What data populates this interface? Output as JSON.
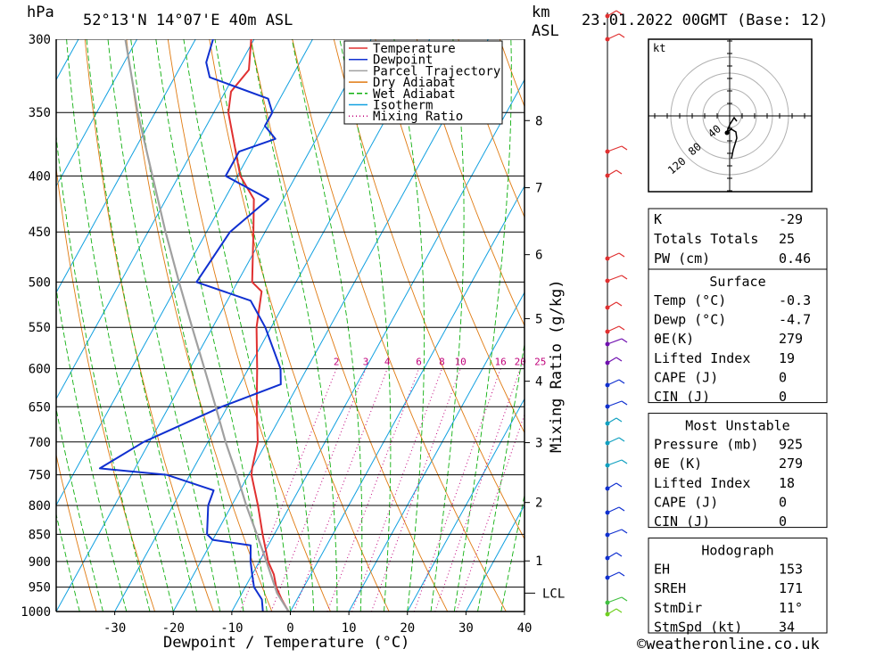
{
  "header": {
    "location": "52°13'N  14°07'E  40m  ASL",
    "datetime": "23.01.2022  00GMT  (Base: 12)",
    "hpa_unit": "hPa",
    "km_unit": "km",
    "asl_unit": "ASL"
  },
  "colors": {
    "temperature": "#e03030",
    "dewpoint": "#1030d0",
    "parcel": "#a0a0a0",
    "dry_adiabat": "#e07a10",
    "wet_adiabat": "#10b010",
    "isotherm": "#10a0e0",
    "mixing_ratio": "#c0007a"
  },
  "chart_data": {
    "type": "line",
    "xlabel": "Dewpoint / Temperature (°C)",
    "ylabel": "Mixing Ratio (g/kg)",
    "x_ticks": [
      -30,
      -20,
      -10,
      0,
      10,
      20,
      30,
      40
    ],
    "xlim": [
      -40,
      40
    ],
    "pressure_levels": [
      300,
      350,
      400,
      450,
      500,
      550,
      600,
      650,
      700,
      750,
      800,
      850,
      900,
      950,
      1000
    ],
    "plim": [
      300,
      1000
    ],
    "height_km_ticks": [
      {
        "label": "8",
        "p": 356
      },
      {
        "label": "7",
        "p": 410
      },
      {
        "label": "6",
        "p": 472
      },
      {
        "label": "5",
        "p": 540
      },
      {
        "label": "4",
        "p": 616
      },
      {
        "label": "3",
        "p": 701
      },
      {
        "label": "2",
        "p": 795
      },
      {
        "label": "1",
        "p": 899
      }
    ],
    "lcl": {
      "label": "LCL",
      "p": 962
    },
    "mixing_ratio_labels": [
      "2",
      "3",
      "4",
      "6",
      "8",
      "10",
      "16",
      "20",
      "25"
    ],
    "legend": [
      {
        "label": "Temperature",
        "key": "temperature"
      },
      {
        "label": "Dewpoint",
        "key": "dewpoint"
      },
      {
        "label": "Parcel Trajectory",
        "key": "parcel"
      },
      {
        "label": "Dry Adiabat",
        "key": "dry_adiabat"
      },
      {
        "label": "Wet Adiabat",
        "key": "wet_adiabat"
      },
      {
        "label": "Isotherm",
        "key": "isotherm"
      },
      {
        "label": "Mixing Ratio",
        "key": "mixing_ratio"
      }
    ],
    "legend_position": "top-right",
    "series": [
      {
        "name": "Temperature",
        "points": [
          {
            "p": 1000,
            "t": -0.3
          },
          {
            "p": 975,
            "t": -2.6
          },
          {
            "p": 950,
            "t": -4.7
          },
          {
            "p": 925,
            "t": -6.3
          },
          {
            "p": 900,
            "t": -8.5
          },
          {
            "p": 850,
            "t": -12.0
          },
          {
            "p": 800,
            "t": -15.5
          },
          {
            "p": 750,
            "t": -19.5
          },
          {
            "p": 740,
            "t": -20.0
          },
          {
            "p": 700,
            "t": -21.5
          },
          {
            "p": 650,
            "t": -25.0
          },
          {
            "p": 600,
            "t": -28.5
          },
          {
            "p": 550,
            "t": -32.5
          },
          {
            "p": 510,
            "t": -35.0
          },
          {
            "p": 500,
            "t": -37.5
          },
          {
            "p": 450,
            "t": -42.0
          },
          {
            "p": 420,
            "t": -45.0
          },
          {
            "p": 400,
            "t": -49.5
          },
          {
            "p": 350,
            "t": -57.5
          },
          {
            "p": 335,
            "t": -59.0
          },
          {
            "p": 320,
            "t": -58.0
          },
          {
            "p": 300,
            "t": -60.5
          }
        ]
      },
      {
        "name": "Dewpoint",
        "points": [
          {
            "p": 1000,
            "t": -4.7
          },
          {
            "p": 975,
            "t": -6.0
          },
          {
            "p": 950,
            "t": -8.5
          },
          {
            "p": 925,
            "t": -10.0
          },
          {
            "p": 900,
            "t": -11.5
          },
          {
            "p": 870,
            "t": -13.0
          },
          {
            "p": 860,
            "t": -20.0
          },
          {
            "p": 850,
            "t": -21.5
          },
          {
            "p": 800,
            "t": -24.0
          },
          {
            "p": 775,
            "t": -24.5
          },
          {
            "p": 750,
            "t": -34.0
          },
          {
            "p": 740,
            "t": -46.0
          },
          {
            "p": 700,
            "t": -41.0
          },
          {
            "p": 650,
            "t": -31.0
          },
          {
            "p": 620,
            "t": -23.0
          },
          {
            "p": 600,
            "t": -24.5
          },
          {
            "p": 550,
            "t": -31.0
          },
          {
            "p": 520,
            "t": -36.0
          },
          {
            "p": 500,
            "t": -47.0
          },
          {
            "p": 450,
            "t": -46.0
          },
          {
            "p": 420,
            "t": -42.5
          },
          {
            "p": 400,
            "t": -52.0
          },
          {
            "p": 380,
            "t": -52.0
          },
          {
            "p": 370,
            "t": -47.0
          },
          {
            "p": 360,
            "t": -50.0
          },
          {
            "p": 350,
            "t": -50.0
          },
          {
            "p": 340,
            "t": -52.0
          },
          {
            "p": 325,
            "t": -64.0
          },
          {
            "p": 315,
            "t": -66.0
          },
          {
            "p": 300,
            "t": -67.0
          }
        ]
      },
      {
        "name": "Parcel Trajectory",
        "points": [
          {
            "p": 1000,
            "t": -0.3
          },
          {
            "p": 962,
            "t": -4.0
          },
          {
            "p": 900,
            "t": -8.8
          },
          {
            "p": 850,
            "t": -13.0
          },
          {
            "p": 800,
            "t": -17.5
          },
          {
            "p": 750,
            "t": -22.0
          },
          {
            "p": 700,
            "t": -27.0
          },
          {
            "p": 650,
            "t": -32.0
          },
          {
            "p": 600,
            "t": -37.5
          },
          {
            "p": 550,
            "t": -43.5
          },
          {
            "p": 500,
            "t": -50.0
          },
          {
            "p": 450,
            "t": -57.0
          },
          {
            "p": 400,
            "t": -64.5
          },
          {
            "p": 350,
            "t": -73.0
          },
          {
            "p": 300,
            "t": -82.0
          }
        ]
      }
    ]
  },
  "hodograph": {
    "unit": "kt",
    "ring_labels": [
      "40",
      "80",
      "120"
    ]
  },
  "indices": {
    "general": [
      {
        "label": "K",
        "value": "-29"
      },
      {
        "label": "Totals Totals",
        "value": "25"
      },
      {
        "label": "PW (cm)",
        "value": "0.46"
      }
    ],
    "surface": {
      "title": "Surface",
      "rows": [
        {
          "label": "Temp (°C)",
          "value": "-0.3"
        },
        {
          "label": "Dewp (°C)",
          "value": "-4.7"
        },
        {
          "label": "θE(K)",
          "value": "279"
        },
        {
          "label": "Lifted Index",
          "value": "19"
        },
        {
          "label": "CAPE (J)",
          "value": "0"
        },
        {
          "label": "CIN (J)",
          "value": "0"
        }
      ]
    },
    "most_unstable": {
      "title": "Most Unstable",
      "rows": [
        {
          "label": "Pressure (mb)",
          "value": "925"
        },
        {
          "label": "θE (K)",
          "value": "279"
        },
        {
          "label": "Lifted Index",
          "value": "18"
        },
        {
          "label": "CAPE (J)",
          "value": "0"
        },
        {
          "label": "CIN (J)",
          "value": "0"
        }
      ]
    },
    "hodograph_params": {
      "title": "Hodograph",
      "rows": [
        {
          "label": "EH",
          "value": "153"
        },
        {
          "label": "SREH",
          "value": "171"
        },
        {
          "label": "StmDir",
          "value": "11°"
        },
        {
          "label": "StmSpd (kt)",
          "value": "34"
        }
      ]
    }
  },
  "footer": {
    "credit": "©weatheronline.co.uk"
  }
}
